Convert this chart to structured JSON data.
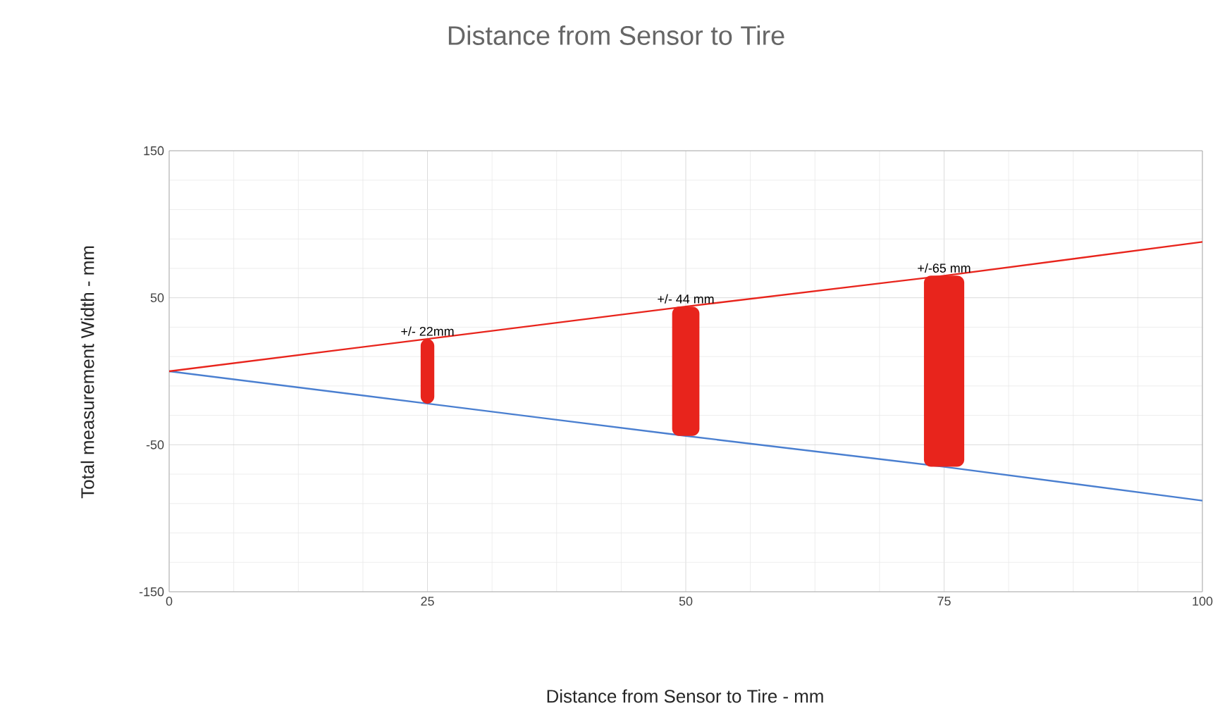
{
  "chart_data": {
    "type": "line",
    "title": "Distance from Sensor to Tire",
    "xlabel": "Distance from Sensor to Tire - mm",
    "ylabel": "Total measurement Width - mm",
    "x": [
      0,
      25,
      50,
      75,
      100
    ],
    "series": [
      {
        "color": "#4a7fd0",
        "values": [
          0,
          -22,
          -44,
          -65,
          -88
        ]
      },
      {
        "color": "#e8241c",
        "values": [
          0,
          22,
          44,
          65,
          88
        ]
      },
      {
        "type": "bar",
        "color": "#e8241c",
        "x": [
          25,
          50,
          75
        ],
        "base": [
          -22,
          -44,
          -65
        ],
        "values": [
          44,
          88,
          130
        ]
      }
    ],
    "annotations": [
      {
        "text": "+/- 22mm",
        "x": 25,
        "y": 22
      },
      {
        "text": "+/- 44 mm",
        "x": 50,
        "y": 44
      },
      {
        "text": "+/-65 mm",
        "x": 75,
        "y": 65
      }
    ],
    "xlim": [
      0,
      100
    ],
    "ylim": [
      -150,
      150
    ],
    "xticks": [
      0,
      25,
      50,
      75,
      100
    ],
    "yticks": [
      -150,
      -50,
      50,
      150
    ],
    "grid": true
  }
}
